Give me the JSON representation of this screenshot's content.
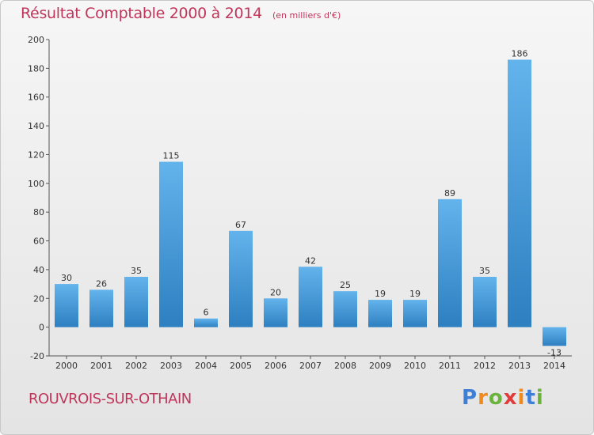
{
  "header": {
    "title": "Résultat Comptable 2000 à 2014",
    "subtitle": "(en milliers d'€)"
  },
  "footer": {
    "place": "ROUVROIS-SUR-OTHAIN",
    "logo": [
      "P",
      "r",
      "o",
      "x",
      "i",
      "t",
      "i"
    ],
    "logo_colors": [
      "#3d7fd6",
      "#f08a1c",
      "#6cb33e",
      "#e23b3b",
      "#f08a1c",
      "#3d7fd6",
      "#6cb33e"
    ]
  },
  "colors": {
    "bar_top": "#63b3ec",
    "bar_bottom": "#2d7fc0",
    "text": "#333333",
    "title": "#c0365b"
  },
  "chart_data": {
    "type": "bar",
    "title": "Résultat Comptable 2000 à 2014",
    "subtitle": "(en milliers d'€)",
    "categories": [
      "2000",
      "2001",
      "2002",
      "2003",
      "2004",
      "2005",
      "2006",
      "2007",
      "2008",
      "2009",
      "2010",
      "2011",
      "2012",
      "2013",
      "2014"
    ],
    "values": [
      30,
      26,
      35,
      115,
      6,
      67,
      20,
      42,
      25,
      19,
      19,
      89,
      35,
      186,
      -13
    ],
    "data_labels": [
      "30",
      "26",
      "35",
      "115",
      "6",
      "67",
      "20",
      "42",
      "25",
      "19",
      "19",
      "89",
      "35",
      "186",
      "-13"
    ],
    "ylim": [
      -20,
      200
    ],
    "yticks": [
      -20,
      0,
      20,
      40,
      60,
      80,
      100,
      120,
      140,
      160,
      180,
      200
    ],
    "xlabel": "",
    "ylabel": "",
    "grid": false,
    "legend": "none"
  }
}
